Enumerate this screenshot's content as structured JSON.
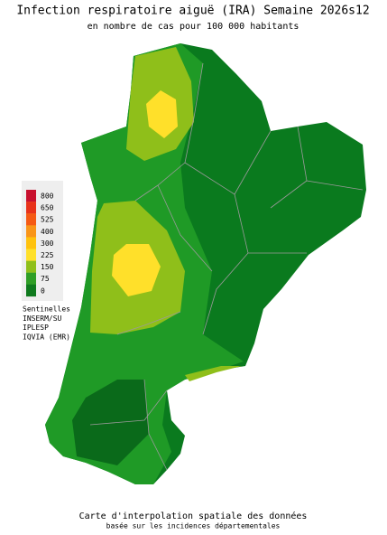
{
  "title": "Infection respiratoire aiguë (IRA) Semaine 2026s12",
  "subtitle": "en nombre de cas pour 100 000 habitants",
  "legend": {
    "ticks": [
      800,
      650,
      525,
      400,
      300,
      225,
      150,
      75,
      0
    ],
    "colors": [
      "#c8102e",
      "#e8321a",
      "#f55a14",
      "#f99518",
      "#ffc20e",
      "#ffe02a",
      "#8fbf1a",
      "#2f9e26",
      "#0f7a1e"
    ]
  },
  "sources": [
    "Sentinelles",
    "INSERM/SU",
    "IPLESP",
    "IQVIA (EMR)"
  ],
  "footer": {
    "line1": "Carte d'interpolation spatiale des données",
    "line2": "basée sur les incidences départementales"
  }
}
